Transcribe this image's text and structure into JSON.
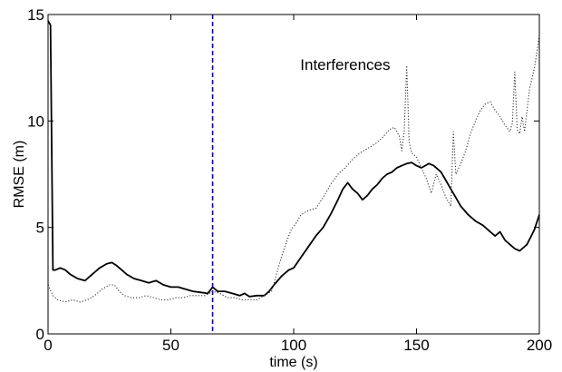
{
  "chart_data": {
    "type": "line",
    "title": "",
    "xlabel": "time (s)",
    "ylabel": "RMSE (m)",
    "xlim": [
      0,
      200
    ],
    "ylim": [
      0,
      15
    ],
    "x_ticks": [
      0,
      50,
      100,
      150,
      200
    ],
    "y_ticks": [
      0,
      5,
      10,
      15
    ],
    "grid": false,
    "annotations": [
      {
        "text": "Interferences",
        "x": 121,
        "y": 12.4
      }
    ],
    "vline": {
      "x": 67,
      "color": "#0000cc",
      "style": "dashed"
    },
    "series": [
      {
        "style": "solid",
        "color": "#000000",
        "points": [
          [
            0,
            14.7
          ],
          [
            1,
            14.5
          ],
          [
            2,
            3.0
          ],
          [
            3,
            3.0
          ],
          [
            5,
            3.1
          ],
          [
            7,
            3.0
          ],
          [
            9,
            2.8
          ],
          [
            12,
            2.6
          ],
          [
            15,
            2.5
          ],
          [
            18,
            2.8
          ],
          [
            21,
            3.1
          ],
          [
            24,
            3.3
          ],
          [
            26,
            3.35
          ],
          [
            28,
            3.2
          ],
          [
            30,
            3.0
          ],
          [
            32,
            2.8
          ],
          [
            35,
            2.6
          ],
          [
            38,
            2.5
          ],
          [
            41,
            2.4
          ],
          [
            44,
            2.5
          ],
          [
            47,
            2.3
          ],
          [
            50,
            2.2
          ],
          [
            53,
            2.2
          ],
          [
            56,
            2.1
          ],
          [
            59,
            2.0
          ],
          [
            62,
            1.95
          ],
          [
            65,
            1.9
          ],
          [
            67,
            2.2
          ],
          [
            69,
            2.0
          ],
          [
            72,
            2.0
          ],
          [
            75,
            1.9
          ],
          [
            78,
            1.8
          ],
          [
            80,
            1.9
          ],
          [
            82,
            1.75
          ],
          [
            85,
            1.8
          ],
          [
            88,
            1.8
          ],
          [
            90,
            2.0
          ],
          [
            92,
            2.3
          ],
          [
            95,
            2.7
          ],
          [
            98,
            3.0
          ],
          [
            100,
            3.1
          ],
          [
            103,
            3.6
          ],
          [
            106,
            4.1
          ],
          [
            109,
            4.6
          ],
          [
            112,
            5.0
          ],
          [
            115,
            5.6
          ],
          [
            118,
            6.3
          ],
          [
            120,
            6.8
          ],
          [
            122,
            7.1
          ],
          [
            124,
            6.8
          ],
          [
            126,
            6.6
          ],
          [
            128,
            6.3
          ],
          [
            130,
            6.5
          ],
          [
            132,
            6.8
          ],
          [
            134,
            7.0
          ],
          [
            136,
            7.3
          ],
          [
            138,
            7.5
          ],
          [
            140,
            7.6
          ],
          [
            142,
            7.8
          ],
          [
            144,
            7.9
          ],
          [
            146,
            8.0
          ],
          [
            148,
            8.05
          ],
          [
            150,
            7.9
          ],
          [
            152,
            7.8
          ],
          [
            155,
            8.0
          ],
          [
            157,
            7.9
          ],
          [
            160,
            7.6
          ],
          [
            162,
            7.2
          ],
          [
            164,
            6.8
          ],
          [
            166,
            6.4
          ],
          [
            168,
            6.0
          ],
          [
            171,
            5.6
          ],
          [
            174,
            5.3
          ],
          [
            177,
            5.1
          ],
          [
            180,
            4.8
          ],
          [
            182,
            4.6
          ],
          [
            184,
            4.8
          ],
          [
            186,
            4.4
          ],
          [
            188,
            4.2
          ],
          [
            190,
            4.0
          ],
          [
            192,
            3.9
          ],
          [
            195,
            4.2
          ],
          [
            198,
            4.9
          ],
          [
            200,
            5.6
          ]
        ]
      },
      {
        "style": "dotted",
        "color": "#333333",
        "points": [
          [
            0,
            2.3
          ],
          [
            2,
            1.8
          ],
          [
            4,
            1.6
          ],
          [
            7,
            1.5
          ],
          [
            10,
            1.6
          ],
          [
            13,
            1.5
          ],
          [
            16,
            1.6
          ],
          [
            19,
            1.8
          ],
          [
            22,
            2.1
          ],
          [
            25,
            2.3
          ],
          [
            27,
            2.3
          ],
          [
            29,
            2.0
          ],
          [
            31,
            1.8
          ],
          [
            34,
            1.7
          ],
          [
            37,
            1.7
          ],
          [
            40,
            1.8
          ],
          [
            43,
            1.7
          ],
          [
            46,
            1.6
          ],
          [
            49,
            1.6
          ],
          [
            52,
            1.7
          ],
          [
            55,
            1.7
          ],
          [
            58,
            1.8
          ],
          [
            61,
            1.8
          ],
          [
            64,
            1.8
          ],
          [
            67,
            2.0
          ],
          [
            70,
            1.9
          ],
          [
            73,
            1.7
          ],
          [
            76,
            1.7
          ],
          [
            79,
            1.6
          ],
          [
            82,
            1.6
          ],
          [
            85,
            1.6
          ],
          [
            88,
            1.8
          ],
          [
            91,
            2.0
          ],
          [
            93,
            2.8
          ],
          [
            95,
            3.6
          ],
          [
            97,
            4.3
          ],
          [
            99,
            4.9
          ],
          [
            101,
            5.2
          ],
          [
            103,
            5.6
          ],
          [
            106,
            5.8
          ],
          [
            109,
            5.9
          ],
          [
            112,
            6.4
          ],
          [
            115,
            7.0
          ],
          [
            118,
            7.5
          ],
          [
            121,
            7.8
          ],
          [
            124,
            8.2
          ],
          [
            127,
            8.5
          ],
          [
            130,
            8.7
          ],
          [
            133,
            8.9
          ],
          [
            136,
            9.2
          ],
          [
            139,
            9.6
          ],
          [
            141,
            9.7
          ],
          [
            143,
            9.3
          ],
          [
            144,
            8.6
          ],
          [
            145,
            9.5
          ],
          [
            146,
            12.6
          ],
          [
            147,
            9.0
          ],
          [
            148,
            8.5
          ],
          [
            150,
            8.3
          ],
          [
            152,
            7.8
          ],
          [
            154,
            7.3
          ],
          [
            156,
            6.6
          ],
          [
            158,
            7.5
          ],
          [
            160,
            7.0
          ],
          [
            162,
            6.4
          ],
          [
            164,
            6.0
          ],
          [
            165,
            9.5
          ],
          [
            166,
            7.5
          ],
          [
            168,
            8.0
          ],
          [
            170,
            8.6
          ],
          [
            172,
            9.4
          ],
          [
            174,
            10.0
          ],
          [
            176,
            10.5
          ],
          [
            178,
            10.8
          ],
          [
            180,
            10.9
          ],
          [
            182,
            10.5
          ],
          [
            184,
            10.2
          ],
          [
            186,
            9.8
          ],
          [
            188,
            9.5
          ],
          [
            189,
            9.9
          ],
          [
            190,
            12.3
          ],
          [
            191,
            9.6
          ],
          [
            192,
            9.4
          ],
          [
            193,
            10.2
          ],
          [
            194,
            9.5
          ],
          [
            196,
            11.5
          ],
          [
            198,
            12.5
          ],
          [
            200,
            14.0
          ]
        ]
      }
    ]
  }
}
